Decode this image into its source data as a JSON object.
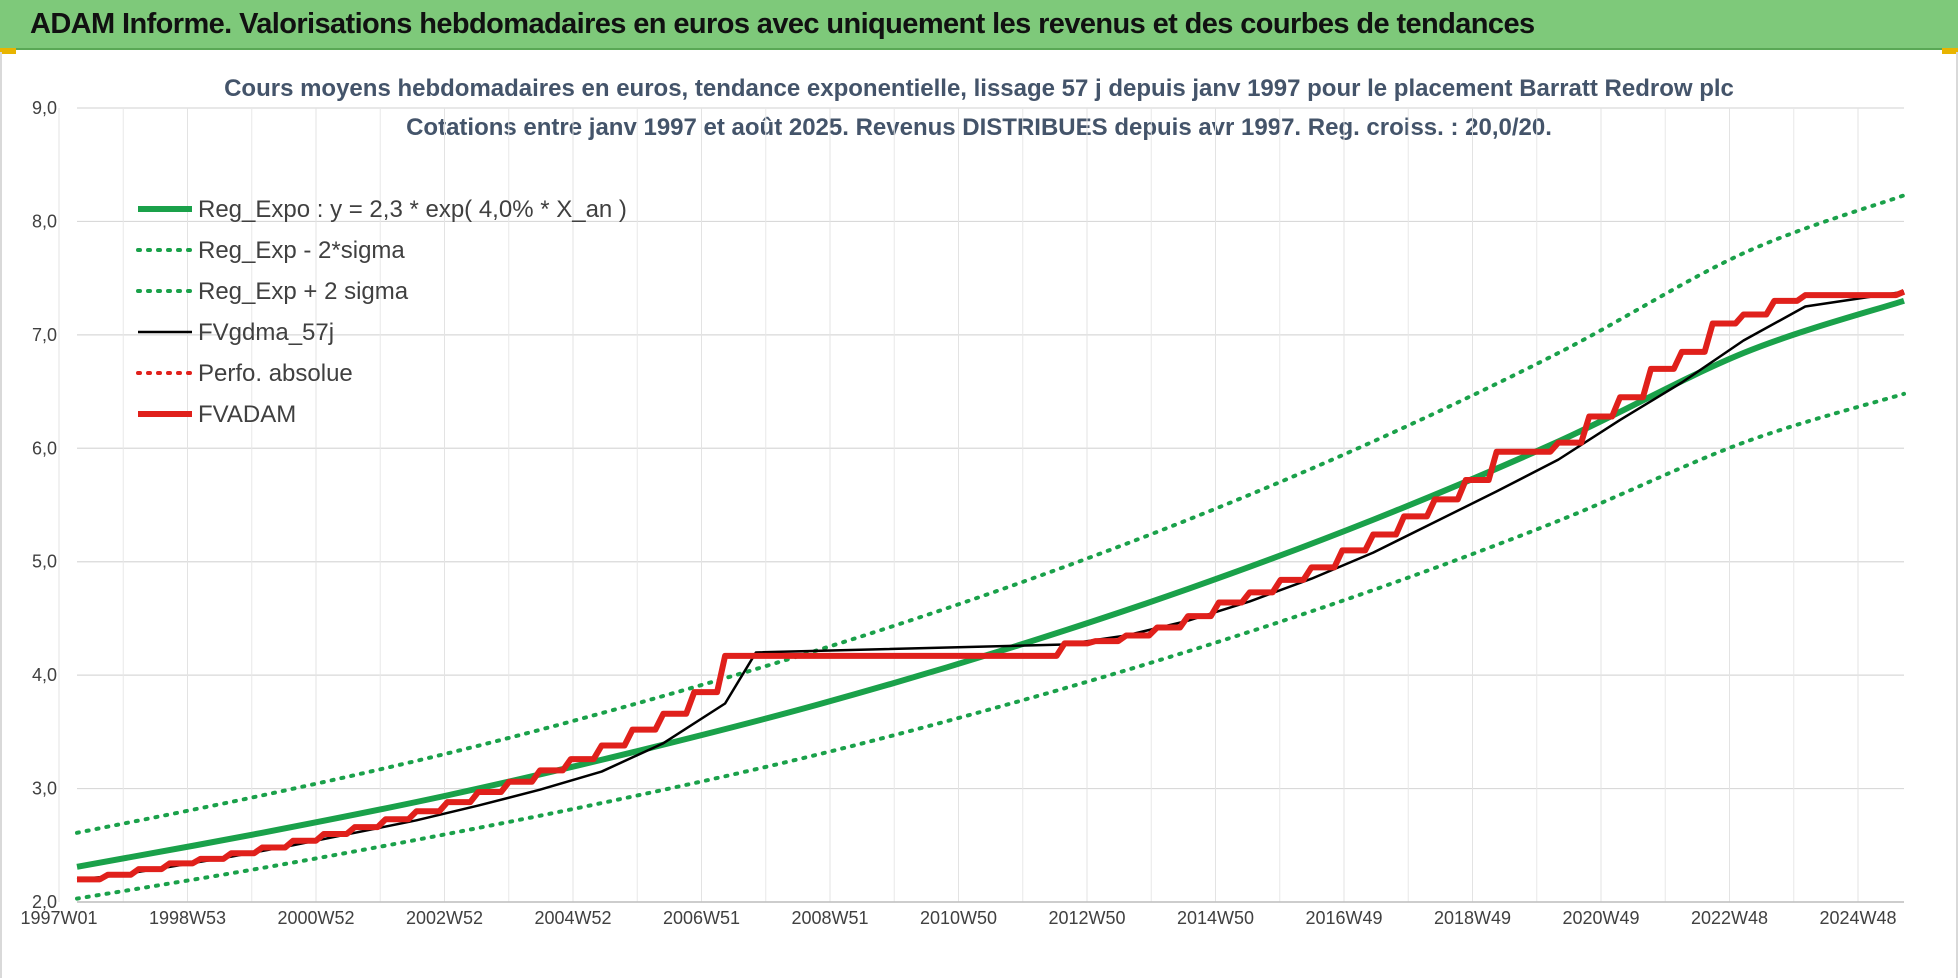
{
  "header": {
    "title": "ADAM Informe. Valorisations hebdomadaires en euros avec uniquement les revenus et des courbes de tendances"
  },
  "chart_data": {
    "type": "line",
    "title": "Cours moyens hebdomadaires en euros, tendance exponentielle, lissage 57 j depuis janv 1997 pour le placement Barratt Redrow plc",
    "subtitle": "Cotations entre janv 1997 et août 2025.  Revenus DISTRIBUES depuis avr 1997. Reg. croiss. : 20,0/20.",
    "xlabel": "",
    "ylabel": "",
    "x_range": [
      "1997W01",
      "2025W34"
    ],
    "ylim": [
      2.0,
      9.0
    ],
    "y_ticks": [
      "9,0",
      "8,0",
      "7,0",
      "6,0",
      "5,0",
      "4,0",
      "3,0",
      "2,0"
    ],
    "x_ticks": [
      "1997W01",
      "1998W53",
      "2000W52",
      "2002W52",
      "2004W52",
      "2006W51",
      "2008W51",
      "2010W50",
      "2012W50",
      "2014W50",
      "2016W49",
      "2018W49",
      "2020W49",
      "2022W48",
      "2024W48"
    ],
    "grid": true,
    "legend_position": "top-left",
    "series": [
      {
        "name": "Reg_Expo : y = 2,3 * exp( 4,0% *  X_an )",
        "color": "#1aa14a",
        "style": "solid-thick",
        "x": [
          1997.0,
          2000.0,
          2003.0,
          2006.0,
          2009.0,
          2012.0,
          2015.0,
          2018.0,
          2021.0,
          2024.0,
          2026.6
        ],
        "values": [
          2.31,
          2.61,
          2.94,
          3.32,
          3.74,
          4.22,
          4.76,
          5.37,
          6.06,
          6.84,
          7.3
        ]
      },
      {
        "name": "Reg_Exp - 2*sigma",
        "color": "#1aa14a",
        "style": "dotted",
        "x": [
          1997.0,
          2000.0,
          2003.0,
          2006.0,
          2009.0,
          2012.0,
          2015.0,
          2018.0,
          2021.0,
          2024.0,
          2026.6
        ],
        "values": [
          2.03,
          2.3,
          2.6,
          2.93,
          3.3,
          3.73,
          4.21,
          4.75,
          5.36,
          6.05,
          6.48
        ]
      },
      {
        "name": "Reg_Exp + 2 sigma",
        "color": "#1aa14a",
        "style": "dotted",
        "x": [
          1997.0,
          2000.0,
          2003.0,
          2006.0,
          2009.0,
          2012.0,
          2015.0,
          2018.0,
          2021.0,
          2024.0,
          2026.6
        ],
        "values": [
          2.61,
          2.94,
          3.31,
          3.74,
          4.22,
          4.76,
          5.37,
          6.06,
          6.84,
          7.72,
          8.23
        ]
      },
      {
        "name": "FVgdma_57j",
        "color": "#000000",
        "style": "solid",
        "x": [
          1997.0,
          1997.6,
          1998.5,
          1999.5,
          2000.5,
          2001.5,
          2002.5,
          2003.5,
          2004.5,
          2005.5,
          2006.5,
          2007.5,
          2008.0,
          2013.0,
          2014.0,
          2015.0,
          2016.0,
          2017.0,
          2018.0,
          2019.0,
          2020.0,
          2021.0,
          2022.0,
          2023.0,
          2024.0,
          2025.0,
          2026.6
        ],
        "values": [
          2.2,
          2.23,
          2.31,
          2.4,
          2.5,
          2.61,
          2.72,
          2.85,
          2.99,
          3.15,
          3.4,
          3.75,
          4.2,
          4.27,
          4.35,
          4.48,
          4.65,
          4.85,
          5.08,
          5.35,
          5.62,
          5.9,
          6.25,
          6.58,
          6.95,
          7.25,
          7.38
        ]
      },
      {
        "name": "Perfo. absolue",
        "color": "#e0201b",
        "style": "dotted",
        "x": [],
        "values": []
      },
      {
        "name": "FVADAM",
        "color": "#e0201b",
        "style": "step-thick",
        "x": [
          1997.0,
          1997.5,
          1998.0,
          1998.5,
          1999.0,
          1999.5,
          2000.0,
          2000.5,
          2001.0,
          2001.5,
          2002.0,
          2002.5,
          2003.0,
          2003.5,
          2004.0,
          2004.5,
          2005.0,
          2005.5,
          2006.0,
          2006.5,
          2007.0,
          2007.5,
          2013.0,
          2013.5,
          2014.0,
          2014.5,
          2015.0,
          2015.5,
          2016.0,
          2016.5,
          2017.0,
          2017.5,
          2018.0,
          2018.5,
          2019.0,
          2019.5,
          2020.0,
          2021.0,
          2021.5,
          2022.0,
          2022.5,
          2023.0,
          2023.5,
          2024.0,
          2024.5,
          2025.0,
          2026.6
        ],
        "values": [
          2.2,
          2.24,
          2.29,
          2.34,
          2.38,
          2.43,
          2.48,
          2.54,
          2.6,
          2.66,
          2.73,
          2.8,
          2.88,
          2.97,
          3.06,
          3.16,
          3.26,
          3.38,
          3.52,
          3.66,
          3.85,
          4.17,
          4.28,
          4.3,
          4.35,
          4.42,
          4.52,
          4.64,
          4.73,
          4.84,
          4.95,
          5.1,
          5.24,
          5.4,
          5.55,
          5.72,
          5.97,
          6.05,
          6.28,
          6.45,
          6.7,
          6.85,
          7.1,
          7.18,
          7.3,
          7.35,
          7.38
        ]
      }
    ]
  }
}
